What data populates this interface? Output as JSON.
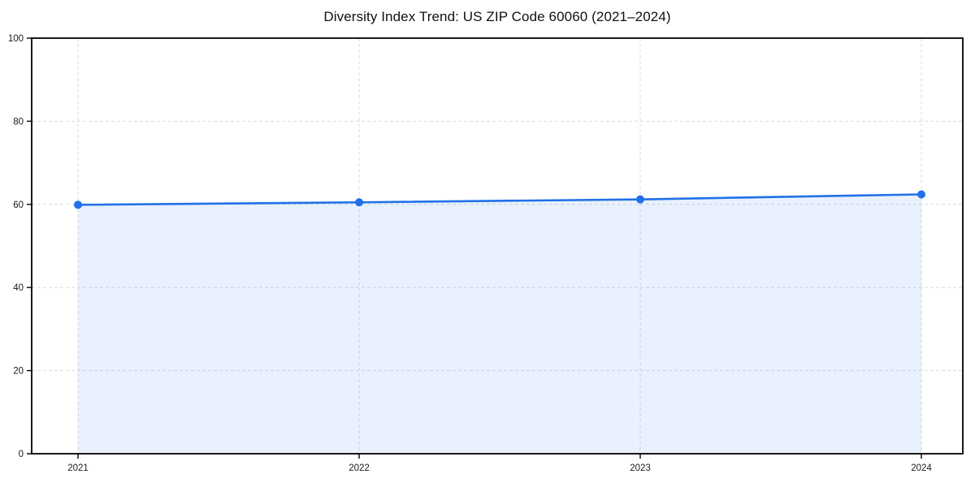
{
  "chart_data": {
    "type": "line",
    "title": "Diversity Index Trend: US ZIP Code 60060 (2021–2024)",
    "categories": [
      "2021",
      "2022",
      "2023",
      "2024"
    ],
    "series": [
      {
        "name": "Diversity Index",
        "values": [
          59.9,
          60.5,
          61.2,
          62.4
        ]
      }
    ],
    "xlabel": "",
    "ylabel": "",
    "ylim": [
      0,
      100
    ],
    "yticks": [
      0,
      20,
      40,
      60,
      80,
      100
    ],
    "grid": true,
    "grid_style": "dashed",
    "legend": "none",
    "marker": "circle",
    "area_fill": true,
    "area_opacity": 0.1,
    "colors": {
      "line": "#2071E8",
      "marker": "#2071E8",
      "area": "#2071E8",
      "grid": "#DCDCDC",
      "axis": "#000000",
      "tick_label": "#1A1A1A",
      "title": "#111111"
    }
  }
}
